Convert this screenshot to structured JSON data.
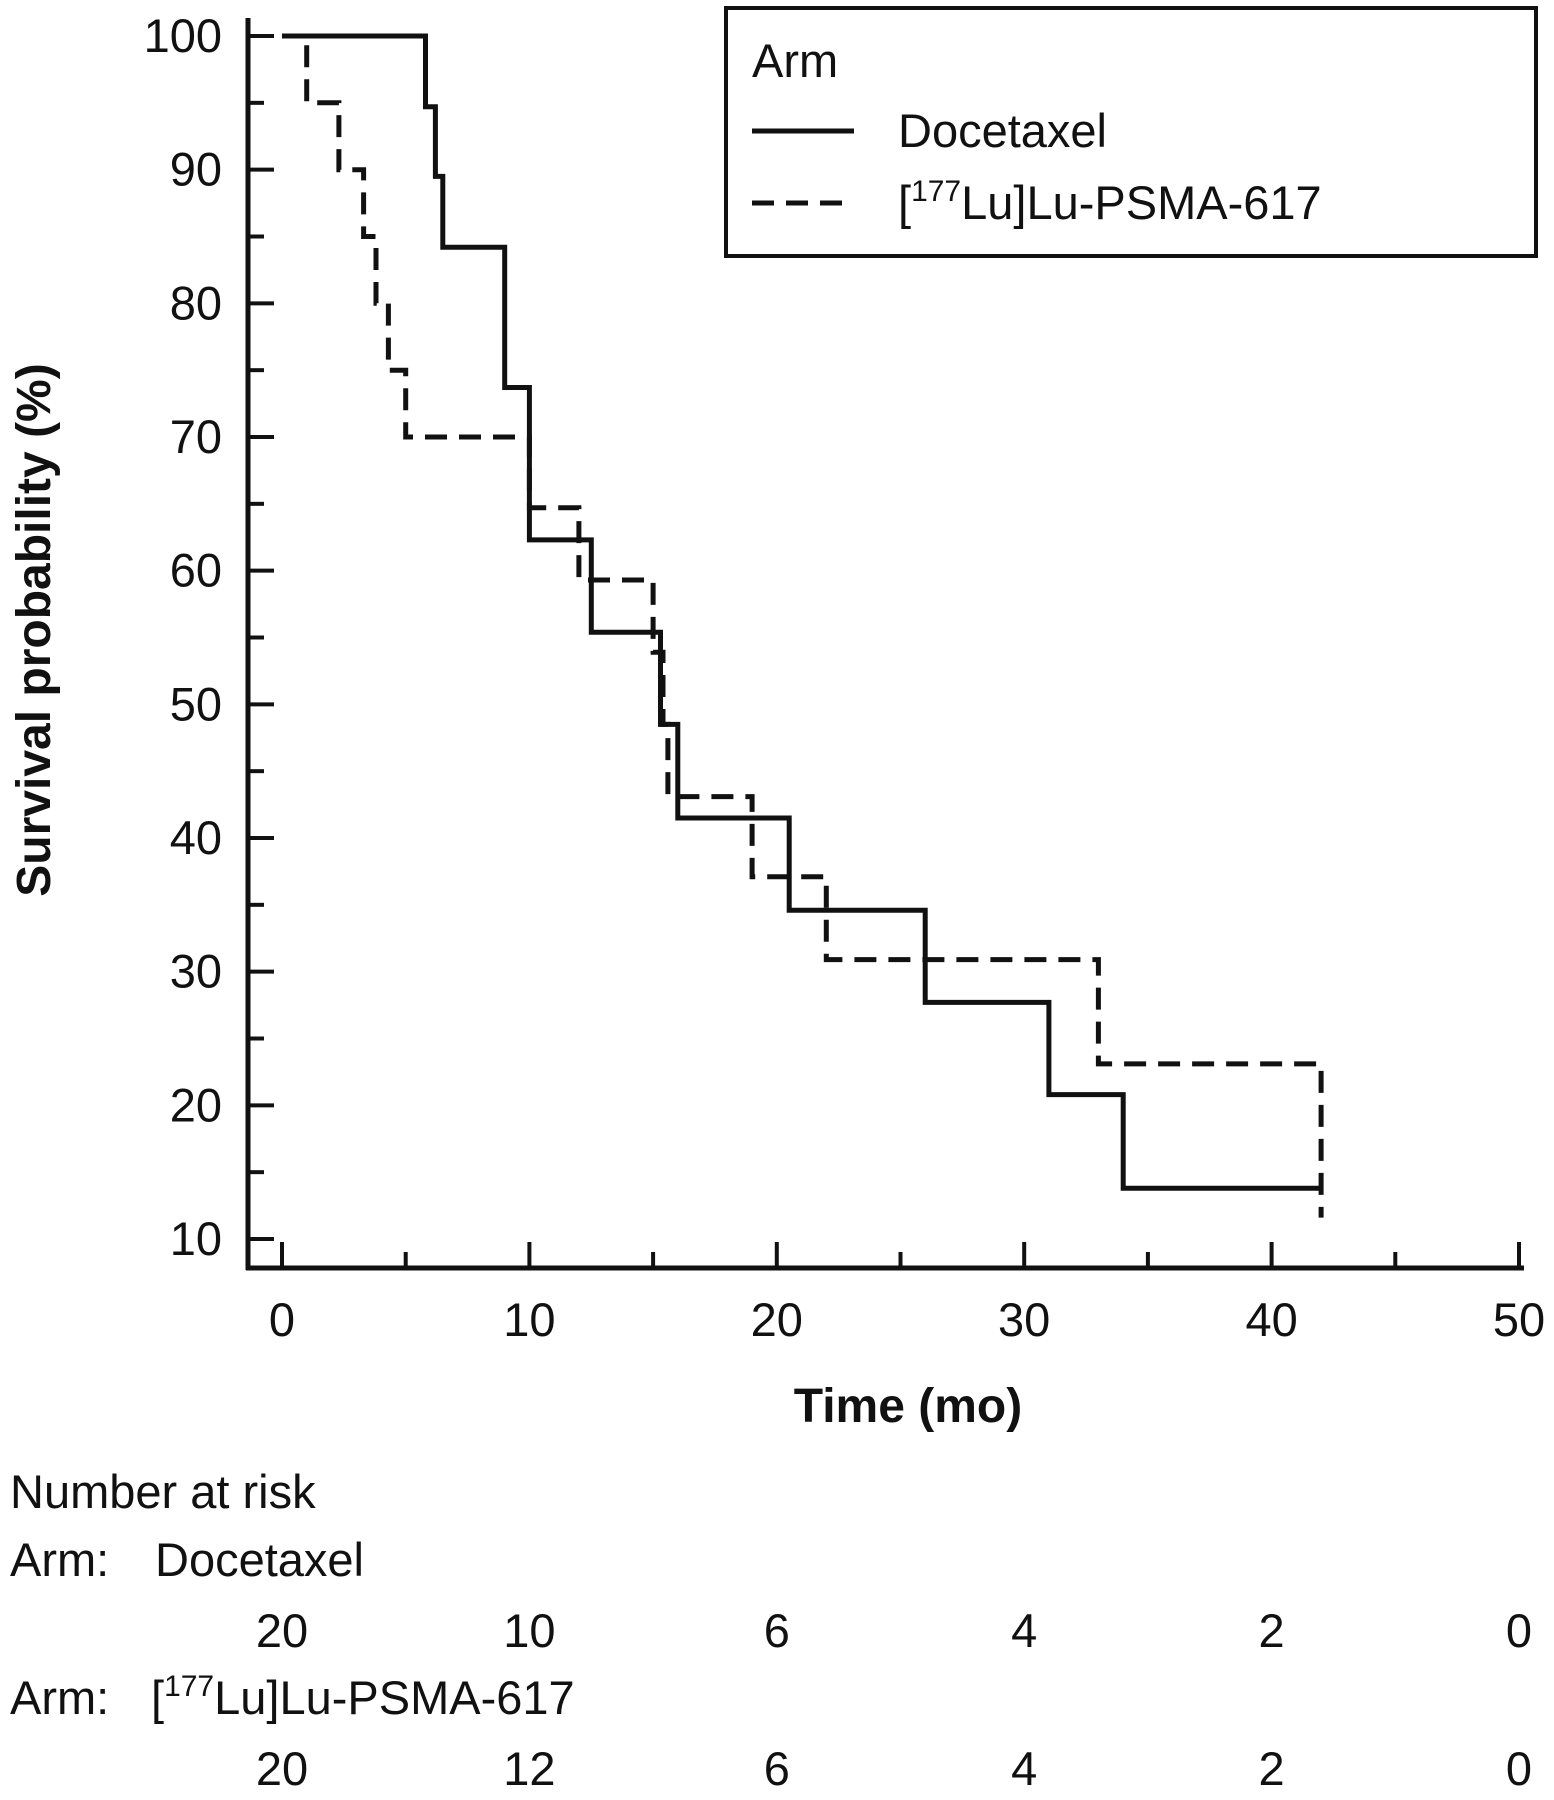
{
  "chart_data": {
    "type": "line",
    "subtype": "kaplan-meier step",
    "xlabel": "Time (mo)",
    "ylabel": "Survival probability (%)",
    "xlim": [
      0,
      50
    ],
    "ylim": [
      10,
      100
    ],
    "x_ticks": [
      0,
      10,
      20,
      30,
      40,
      50
    ],
    "y_ticks": [
      10,
      20,
      30,
      40,
      50,
      60,
      70,
      80,
      90,
      100
    ],
    "grid": false,
    "legend": {
      "title": "Arm",
      "placement": "top-right",
      "entries": [
        {
          "base": "Docetaxel",
          "sup": "",
          "rest": "",
          "style": "solid"
        },
        {
          "base": "[",
          "sup": "177",
          "rest": "Lu]Lu-PSMA-617",
          "style": "dashed"
        }
      ]
    },
    "series": [
      {
        "name": "Docetaxel",
        "style": "solid",
        "x": [
          0,
          5,
          5.8,
          6.2,
          6.5,
          9,
          10,
          12.5,
          15.3,
          16,
          20.5,
          26,
          31,
          34,
          42
        ],
        "y": [
          100,
          100,
          94.7,
          89.5,
          84.2,
          73.7,
          62.3,
          55.4,
          48.5,
          41.5,
          34.6,
          27.7,
          20.8,
          13.8,
          13.8
        ]
      },
      {
        "name": "[177Lu]Lu-PSMA-617",
        "style": "dashed",
        "x": [
          0,
          1,
          2.3,
          3.3,
          3.8,
          4.3,
          5,
          7,
          10,
          12,
          15,
          15.4,
          15.6,
          19,
          22,
          33,
          42
        ],
        "y": [
          100,
          95,
          90,
          85,
          80,
          75,
          70,
          70,
          64.7,
          59.3,
          53.9,
          48.5,
          43.1,
          37.1,
          30.9,
          23.1,
          11.6
        ]
      }
    ],
    "risk_table": {
      "title": "Number at risk",
      "time_points": [
        0,
        10,
        20,
        30,
        40,
        50
      ],
      "rows": [
        {
          "arm_prefix": "Arm:",
          "arm_base": "Docetaxel",
          "arm_sup": "",
          "arm_rest": "",
          "counts": [
            "20",
            "10",
            "6",
            "4",
            "2",
            "0"
          ]
        },
        {
          "arm_prefix": "Arm:",
          "arm_base": "[",
          "arm_sup": "177",
          "arm_rest": "Lu]Lu-PSMA-617",
          "counts": [
            "20",
            "12",
            "6",
            "4",
            "2",
            "0"
          ]
        }
      ]
    }
  }
}
